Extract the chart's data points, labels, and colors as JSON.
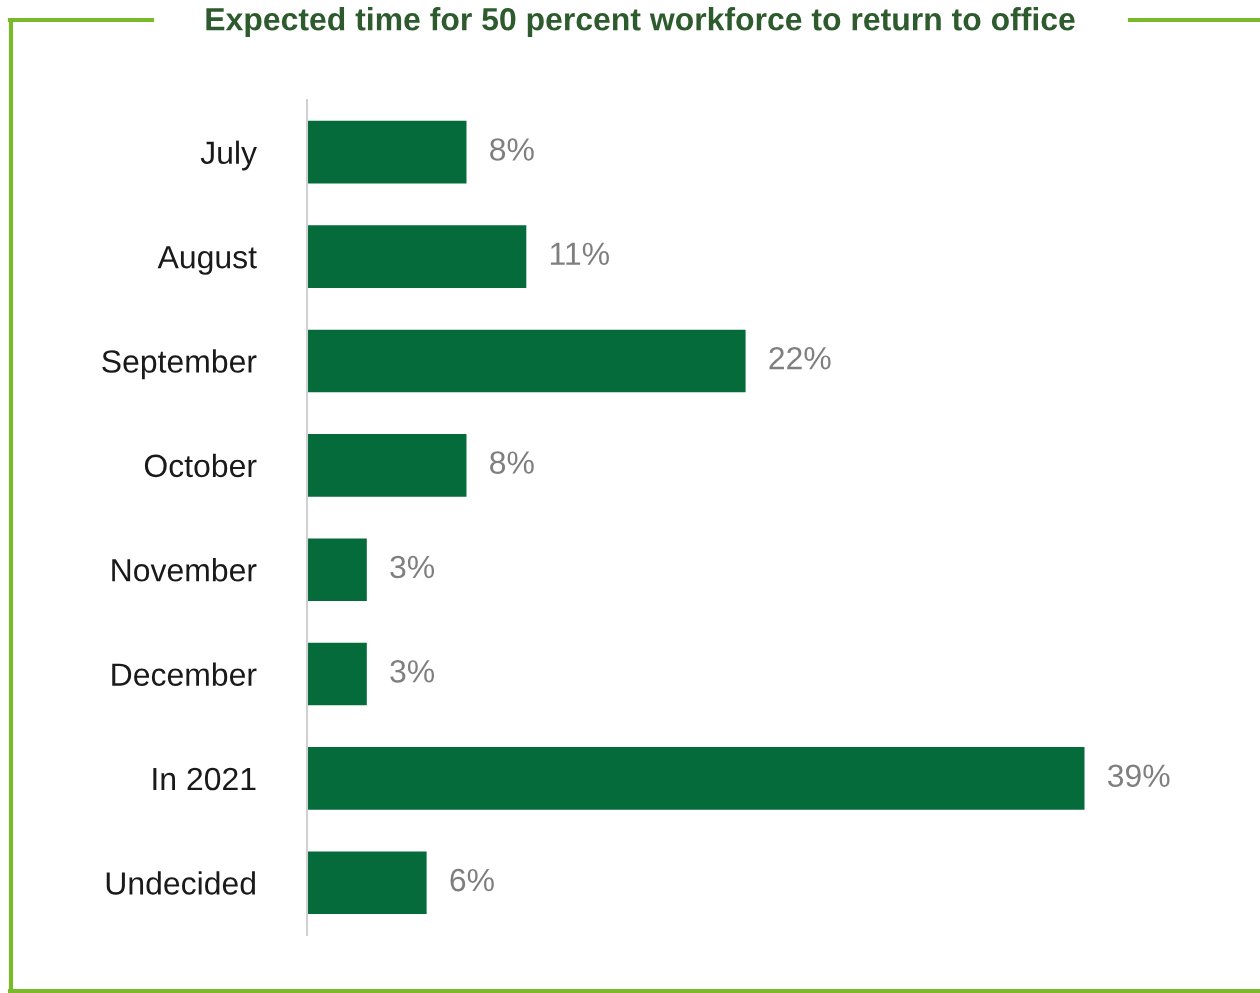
{
  "chart_data": {
    "type": "bar",
    "orientation": "horizontal",
    "title": "Expected time for 50 percent workforce to return to office",
    "categories": [
      "July",
      "August",
      "September",
      "October",
      "November",
      "December",
      "In 2021",
      "Undecided"
    ],
    "values": [
      8,
      11,
      22,
      8,
      3,
      3,
      39,
      6
    ],
    "color": "#066b3a",
    "value_labels": [
      "8%",
      "11%",
      "22%",
      "8%",
      "3%",
      "3%",
      "39%",
      "6%"
    ]
  }
}
